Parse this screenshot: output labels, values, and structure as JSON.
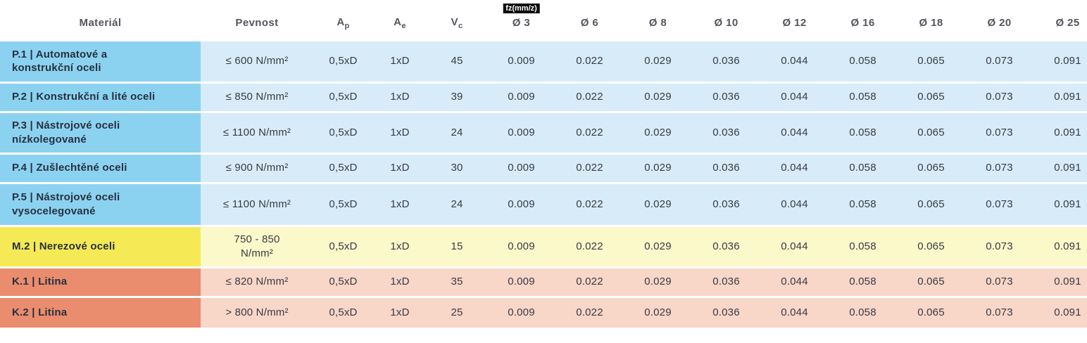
{
  "badge": {
    "label": "fz(mm/z)"
  },
  "columns": [
    {
      "label": "Materiál",
      "sub": ""
    },
    {
      "label": "Pevnost",
      "sub": ""
    },
    {
      "label": "A",
      "sub": "p"
    },
    {
      "label": "A",
      "sub": "e"
    },
    {
      "label": "V",
      "sub": "c"
    },
    {
      "label": "Ø 3"
    },
    {
      "label": "Ø 6"
    },
    {
      "label": "Ø 8"
    },
    {
      "label": "Ø 10"
    },
    {
      "label": "Ø 12"
    },
    {
      "label": "Ø 16"
    },
    {
      "label": "Ø 18"
    },
    {
      "label": "Ø 20"
    },
    {
      "label": "Ø 25"
    }
  ],
  "rows": [
    {
      "group": "P",
      "material": "P.1 | Automatové a\nkonstrukční oceli",
      "pevnost": "≤ 600 N/mm²",
      "ap": "0,5xD",
      "ae": "1xD",
      "vc": "45",
      "fz": [
        "0.009",
        "0.022",
        "0.029",
        "0.036",
        "0.044",
        "0.058",
        "0.065",
        "0.073",
        "0.091"
      ]
    },
    {
      "group": "P",
      "material": "P.2 | Konstrukční a lité oceli",
      "pevnost": "≤ 850 N/mm²",
      "ap": "0,5xD",
      "ae": "1xD",
      "vc": "39",
      "fz": [
        "0.009",
        "0.022",
        "0.029",
        "0.036",
        "0.044",
        "0.058",
        "0.065",
        "0.073",
        "0.091"
      ]
    },
    {
      "group": "P",
      "material": "P.3 | Nástrojové oceli\nnízkolegované",
      "pevnost": "≤ 1100 N/mm²",
      "ap": "0,5xD",
      "ae": "1xD",
      "vc": "24",
      "fz": [
        "0.009",
        "0.022",
        "0.029",
        "0.036",
        "0.044",
        "0.058",
        "0.065",
        "0.073",
        "0.091"
      ]
    },
    {
      "group": "P",
      "material": "P.4 | Zušlechtěné oceli",
      "pevnost": "≤ 900 N/mm²",
      "ap": "0,5xD",
      "ae": "1xD",
      "vc": "30",
      "fz": [
        "0.009",
        "0.022",
        "0.029",
        "0.036",
        "0.044",
        "0.058",
        "0.065",
        "0.073",
        "0.091"
      ]
    },
    {
      "group": "P",
      "material": "P.5 | Nástrojové oceli\nvysocelegované",
      "pevnost": "≤ 1100 N/mm²",
      "ap": "0,5xD",
      "ae": "1xD",
      "vc": "24",
      "fz": [
        "0.009",
        "0.022",
        "0.029",
        "0.036",
        "0.044",
        "0.058",
        "0.065",
        "0.073",
        "0.091"
      ]
    },
    {
      "group": "M",
      "material": "M.2 | Nerezové oceli",
      "pevnost": "750 - 850\nN/mm²",
      "ap": "0,5xD",
      "ae": "1xD",
      "vc": "15",
      "fz": [
        "0.009",
        "0.022",
        "0.029",
        "0.036",
        "0.044",
        "0.058",
        "0.065",
        "0.073",
        "0.091"
      ]
    },
    {
      "group": "K",
      "material": "K.1 | Litina",
      "pevnost": "≤ 820 N/mm²",
      "ap": "0,5xD",
      "ae": "1xD",
      "vc": "35",
      "fz": [
        "0.009",
        "0.022",
        "0.029",
        "0.036",
        "0.044",
        "0.058",
        "0.065",
        "0.073",
        "0.091"
      ]
    },
    {
      "group": "K",
      "material": "K.2 | Litina",
      "pevnost": "> 800 N/mm²",
      "ap": "0,5xD",
      "ae": "1xD",
      "vc": "25",
      "fz": [
        "0.009",
        "0.022",
        "0.029",
        "0.036",
        "0.044",
        "0.058",
        "0.065",
        "0.073",
        "0.091"
      ]
    }
  ],
  "colors": {
    "p_material": "#8bd2f1",
    "p_values": "#d7ecf8",
    "m_material": "#f5ea55",
    "m_values": "#fbf8ca",
    "k_material": "#ea8c6e",
    "k_values": "#f8d6c8",
    "badge_bg": "#0b0b0d",
    "badge_text": "#ffffff",
    "header_text": "#54565e",
    "body_text": "#393a43"
  }
}
